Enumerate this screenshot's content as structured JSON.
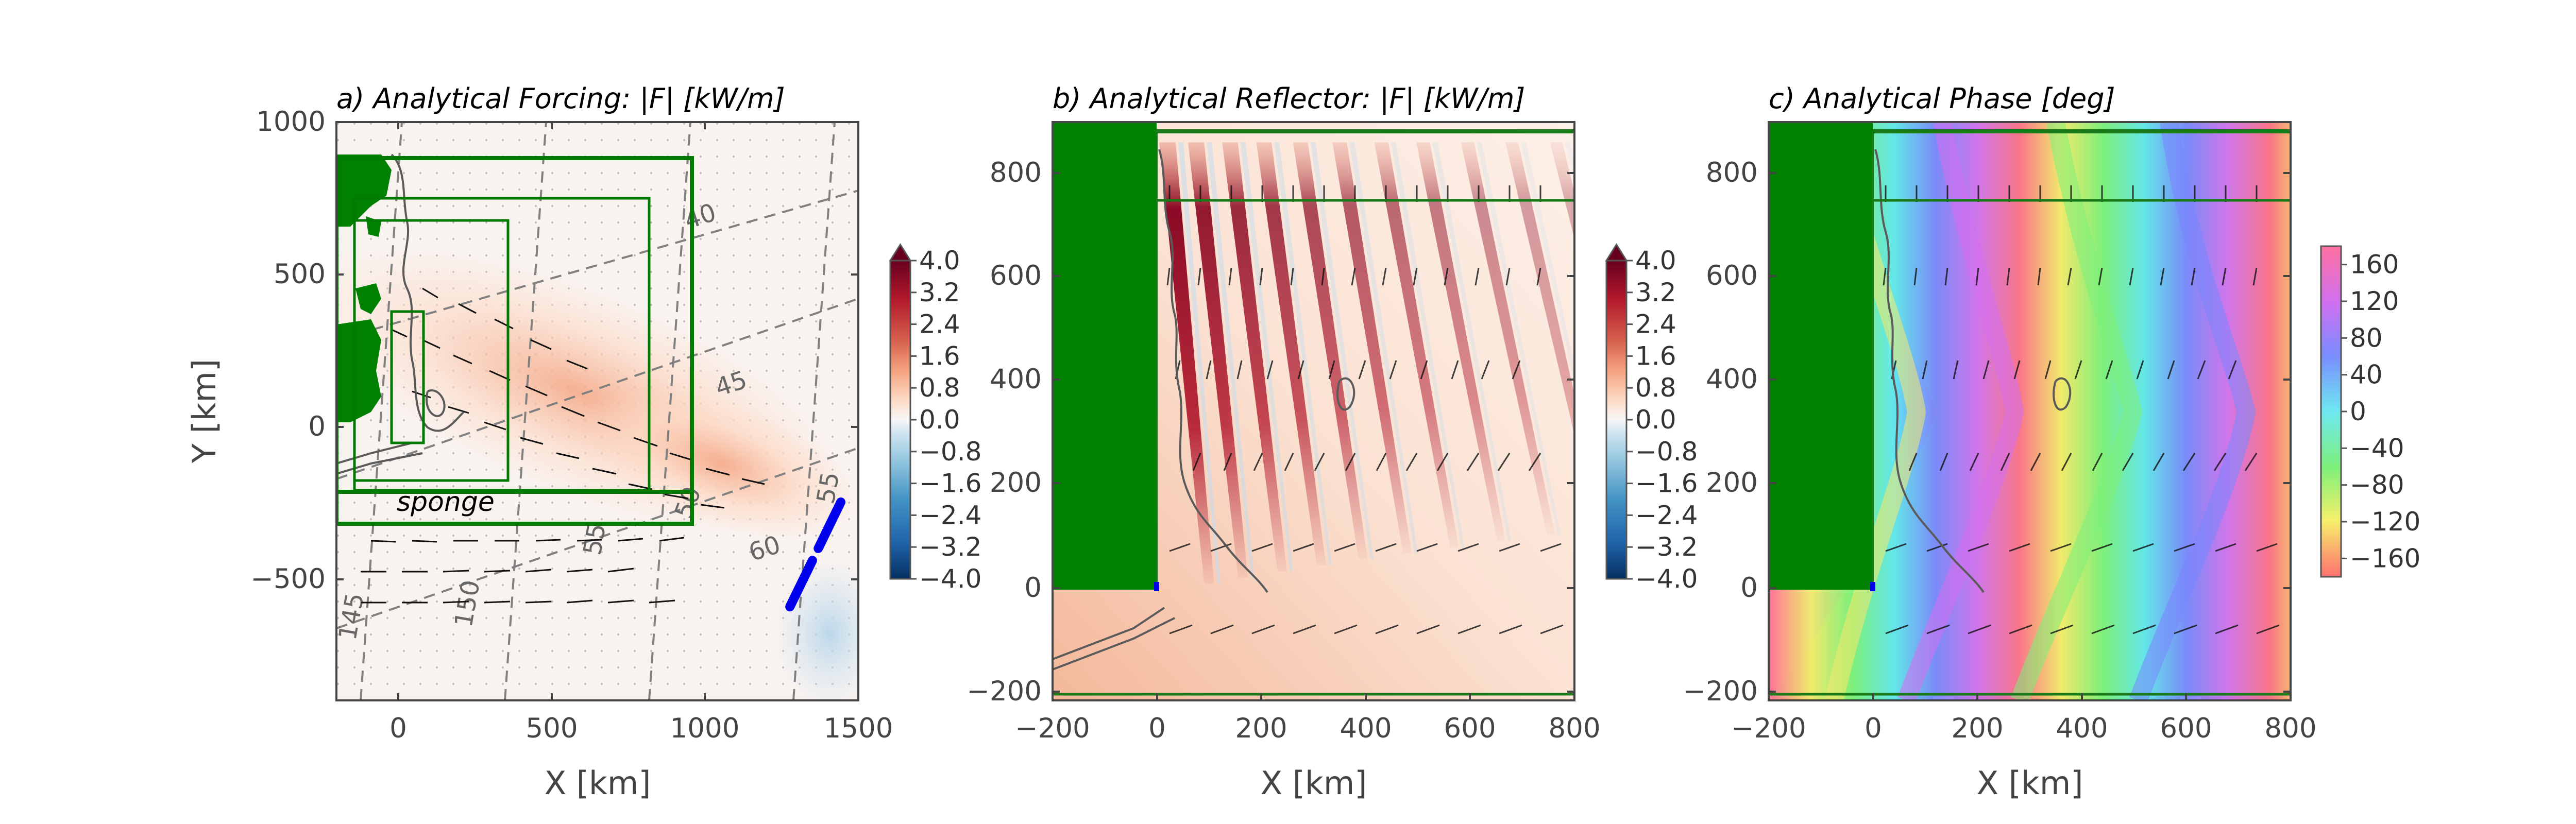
{
  "chart_data": [
    {
      "type": "heatmap",
      "title": "a) Analytical Forcing: |F| [kW/m]",
      "xlabel": "X [km]",
      "ylabel": "Y [km]",
      "xlim": [
        -200,
        1500
      ],
      "ylim": [
        -900,
        1000
      ],
      "xticks": [
        "0",
        "500",
        "1000",
        "1500"
      ],
      "yticks": [
        "1000",
        "500",
        "0",
        "−500"
      ],
      "colorbar": {
        "range": [
          -4.0,
          4.0
        ],
        "ticks": [
          "4.0",
          "3.2",
          "2.4",
          "1.6",
          "0.8",
          "0.0",
          "−0.8",
          "−1.6",
          "−2.4",
          "−3.2",
          "−4.0"
        ],
        "colormap": "RdBu_r",
        "extend": "max"
      },
      "contour_labels": [
        "40",
        "45",
        "50",
        "55",
        "60",
        "145",
        "150",
        "155",
        "55"
      ],
      "annotation": "sponge",
      "colors": {
        "land": "#008000",
        "forcing_line": "#0000ee",
        "contour": "#808080",
        "box": "#007a00"
      }
    },
    {
      "type": "heatmap",
      "title": "b) Analytical Reflector: |F| [kW/m]",
      "xlabel": "X [km]",
      "ylabel": "",
      "xlim": [
        -200,
        800
      ],
      "ylim": [
        -220,
        920
      ],
      "xticks": [
        "−200",
        "0",
        "200",
        "400",
        "600",
        "800"
      ],
      "yticks": [
        "800",
        "600",
        "400",
        "200",
        "0",
        "−200"
      ],
      "colorbar": {
        "range": [
          -4.0,
          4.0
        ],
        "ticks": [
          "4.0",
          "3.2",
          "2.4",
          "1.6",
          "0.8",
          "0.0",
          "−0.8",
          "−1.6",
          "−2.4",
          "−3.2",
          "−4.0"
        ],
        "colormap": "RdBu_r",
        "extend": "max"
      },
      "beam_x_km": [
        20,
        75,
        140,
        205,
        275,
        350,
        430,
        510,
        595,
        680,
        765
      ],
      "colors": {
        "land": "#008000",
        "lines": "#1a7a1a"
      }
    },
    {
      "type": "heatmap",
      "title": "c) Analytical Phase [deg]",
      "xlabel": "X [km]",
      "ylabel": "",
      "xlim": [
        -200,
        800
      ],
      "ylim": [
        -220,
        920
      ],
      "xticks": [
        "−200",
        "0",
        "200",
        "400",
        "600",
        "800"
      ],
      "yticks": [
        "800",
        "600",
        "400",
        "200",
        "0",
        "−200"
      ],
      "colorbar": {
        "range": [
          -180,
          180
        ],
        "ticks": [
          "160",
          "120",
          "80",
          "40",
          "0",
          "−40",
          "−80",
          "−120",
          "−160"
        ],
        "colormap": "hsv"
      },
      "colors": {
        "land": "#008000",
        "lines": "#1a7a1a"
      }
    }
  ]
}
